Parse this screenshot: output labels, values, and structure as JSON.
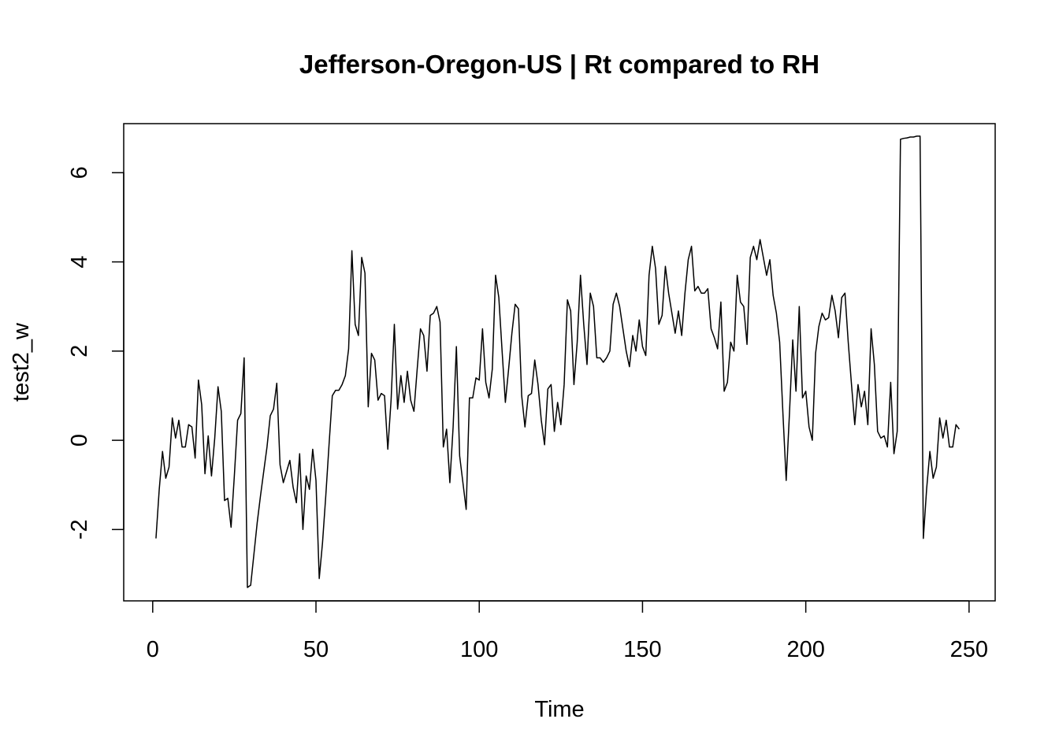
{
  "chart_data": {
    "type": "line",
    "title": "Jefferson-Oregon-US | Rt compared to RH",
    "xlabel": "Time",
    "ylabel": "test2_w",
    "xlim": [
      -8.88,
      258
    ],
    "ylim": [
      -3.6,
      7.1
    ],
    "x_ticks": [
      0,
      50,
      100,
      150,
      200,
      250
    ],
    "y_ticks": [
      -2,
      0,
      2,
      4,
      6
    ],
    "grid": false,
    "legend": "none",
    "line_color": "#000000",
    "series": [
      {
        "values": [
          -2.2,
          -1.1,
          -0.25,
          -0.85,
          -0.6,
          0.5,
          0.05,
          0.45,
          -0.15,
          -0.15,
          0.35,
          0.3,
          -0.4,
          1.35,
          0.8,
          -0.75,
          0.1,
          -0.8,
          0.05,
          1.2,
          0.65,
          -1.35,
          -1.3,
          -1.95,
          -0.8,
          0.45,
          0.6,
          1.85,
          -3.3,
          -3.25,
          -2.55,
          -1.85,
          -1.25,
          -0.7,
          -0.15,
          0.55,
          0.7,
          1.28,
          -0.55,
          -0.95,
          -0.7,
          -0.45,
          -1.05,
          -1.4,
          -0.3,
          -2.0,
          -0.8,
          -1.1,
          -0.2,
          -0.9,
          -3.1,
          -2.3,
          -1.25,
          -0.1,
          1.0,
          1.12,
          1.12,
          1.25,
          1.45,
          2.05,
          4.25,
          2.6,
          2.35,
          4.1,
          3.75,
          0.75,
          1.95,
          1.8,
          0.9,
          1.05,
          1.0,
          -0.2,
          0.9,
          2.6,
          0.7,
          1.45,
          0.85,
          1.55,
          0.9,
          0.65,
          1.6,
          2.5,
          2.35,
          1.55,
          2.8,
          2.85,
          3.0,
          2.65,
          -0.15,
          0.25,
          -0.95,
          0.3,
          2.1,
          -0.35,
          -0.95,
          -1.55,
          0.95,
          0.95,
          1.4,
          1.35,
          2.5,
          1.3,
          0.95,
          1.6,
          3.7,
          3.2,
          2.0,
          0.85,
          1.6,
          2.4,
          3.05,
          2.95,
          1.0,
          0.3,
          1.0,
          1.05,
          1.8,
          1.25,
          0.45,
          -0.1,
          1.15,
          1.25,
          0.2,
          0.85,
          0.35,
          1.25,
          3.15,
          2.9,
          1.25,
          2.2,
          3.7,
          2.6,
          1.7,
          3.3,
          3.0,
          1.85,
          1.85,
          1.75,
          1.85,
          2.0,
          3.05,
          3.3,
          3.0,
          2.5,
          2.0,
          1.65,
          2.35,
          2.0,
          2.7,
          2.1,
          1.9,
          3.7,
          4.35,
          3.85,
          2.6,
          2.8,
          3.9,
          3.3,
          2.85,
          2.4,
          2.9,
          2.35,
          3.3,
          4.05,
          4.35,
          3.35,
          3.45,
          3.3,
          3.3,
          3.4,
          2.5,
          2.3,
          2.05,
          3.1,
          1.1,
          1.3,
          2.2,
          2.0,
          3.7,
          3.1,
          3.0,
          2.15,
          4.1,
          4.35,
          4.05,
          4.5,
          4.1,
          3.7,
          4.05,
          3.25,
          2.85,
          2.2,
          0.6,
          -0.9,
          0.6,
          2.25,
          1.1,
          3.0,
          0.95,
          1.1,
          0.3,
          0.0,
          1.95,
          2.55,
          2.85,
          2.7,
          2.75,
          3.25,
          2.9,
          2.3,
          3.2,
          3.3,
          2.2,
          1.25,
          0.35,
          1.25,
          0.75,
          1.1,
          0.35,
          2.5,
          1.7,
          0.2,
          0.05,
          0.1,
          -0.15,
          1.3,
          -0.3,
          0.2,
          6.75,
          6.77,
          6.78,
          6.8,
          6.8,
          6.82,
          6.82,
          -2.2,
          -1.1,
          -0.25,
          -0.85,
          -0.6,
          0.5,
          0.05,
          0.45,
          -0.15,
          -0.15,
          0.35,
          0.25
        ]
      }
    ]
  }
}
